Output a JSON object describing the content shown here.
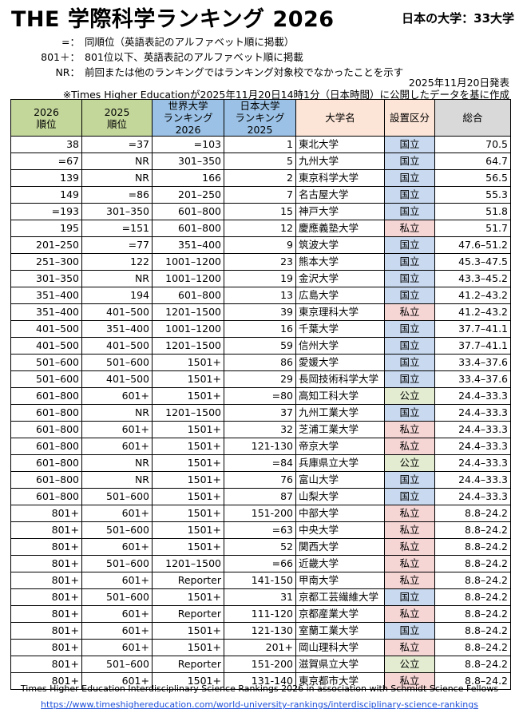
{
  "title": "THE 学際科学ランキング 2026",
  "subtitle": "日本の大学：33大学",
  "legend": [
    {
      "key": "=：",
      "text": "同順位（英語表記のアルファベット順に掲載）"
    },
    {
      "key": "801＋：",
      "text": "801位以下、英語表記のアルファベット順に掲載"
    },
    {
      "key": "NR：",
      "text": "前回または他のランキングではランキング対象校でなかったことを示す"
    }
  ],
  "date_line": "2025年11月20日発表",
  "source_line": "※Times Higher Educationが2025年11月20日14時1分（日本時間）に公開したデータを基に作成",
  "headers": [
    "2026\n順位",
    "2025\n順位",
    "世界大学\nランキング2026",
    "日本大学\nランキング2025",
    "大学名",
    "設置区分",
    "総合"
  ],
  "colors": {
    "national": "#c9daf0",
    "private": "#f6d5d5",
    "public": "#e3ecd0"
  },
  "rows": [
    [
      "38",
      "=37",
      "=103",
      "1",
      "東北大学",
      "国立",
      "70.5"
    ],
    [
      "=67",
      "NR",
      "301–350",
      "5",
      "九州大学",
      "国立",
      "64.7"
    ],
    [
      "139",
      "NR",
      "166",
      "2",
      "東京科学大学",
      "国立",
      "56.5"
    ],
    [
      "149",
      "=86",
      "201–250",
      "7",
      "名古屋大学",
      "国立",
      "55.3"
    ],
    [
      "=193",
      "301–350",
      "601–800",
      "15",
      "神戸大学",
      "国立",
      "51.8"
    ],
    [
      "195",
      "=151",
      "601–800",
      "12",
      "慶應義塾大学",
      "私立",
      "51.7"
    ],
    [
      "201–250",
      "=77",
      "351–400",
      "9",
      "筑波大学",
      "国立",
      "47.6–51.2"
    ],
    [
      "251–300",
      "122",
      "1001–1200",
      "23",
      "熊本大学",
      "国立",
      "45.3–47.5"
    ],
    [
      "301–350",
      "NR",
      "1001–1200",
      "19",
      "金沢大学",
      "国立",
      "43.3–45.2"
    ],
    [
      "351–400",
      "194",
      "601–800",
      "13",
      "広島大学",
      "国立",
      "41.2–43.2"
    ],
    [
      "351–400",
      "401–500",
      "1201–1500",
      "39",
      "東京理科大学",
      "私立",
      "41.2–43.2"
    ],
    [
      "401–500",
      "351–400",
      "1001–1200",
      "16",
      "千葉大学",
      "国立",
      "37.7–41.1"
    ],
    [
      "401–500",
      "401–500",
      "1201–1500",
      "59",
      "信州大学",
      "国立",
      "37.7–41.1"
    ],
    [
      "501–600",
      "501–600",
      "1501+",
      "86",
      "愛媛大学",
      "国立",
      "33.4–37.6"
    ],
    [
      "501–600",
      "401–500",
      "1501+",
      "29",
      "長岡技術科学大学",
      "国立",
      "33.4–37.6"
    ],
    [
      "601–800",
      "601+",
      "1501+",
      "=80",
      "高知工科大学",
      "公立",
      "24.4–33.3"
    ],
    [
      "601–800",
      "NR",
      "1201–1500",
      "37",
      "九州工業大学",
      "国立",
      "24.4–33.3"
    ],
    [
      "601–800",
      "601+",
      "1501+",
      "32",
      "芝浦工業大学",
      "私立",
      "24.4–33.3"
    ],
    [
      "601–800",
      "601+",
      "1501+",
      "121-130",
      "帝京大学",
      "私立",
      "24.4–33.3"
    ],
    [
      "601–800",
      "NR",
      "1501+",
      "=84",
      "兵庫県立大学",
      "公立",
      "24.4–33.3"
    ],
    [
      "601–800",
      "NR",
      "1501+",
      "76",
      "富山大学",
      "国立",
      "24.4–33.3"
    ],
    [
      "601–800",
      "501–600",
      "1501+",
      "87",
      "山梨大学",
      "国立",
      "24.4–33.3"
    ],
    [
      "801+",
      "601+",
      "1501+",
      "151-200",
      "中部大学",
      "私立",
      "8.8–24.2"
    ],
    [
      "801+",
      "501–600",
      "1501+",
      "=63",
      "中央大学",
      "私立",
      "8.8–24.2"
    ],
    [
      "801+",
      "601+",
      "1501+",
      "52",
      "関西大学",
      "私立",
      "8.8–24.2"
    ],
    [
      "801+",
      "501–600",
      "1201–1500",
      "=66",
      "近畿大学",
      "私立",
      "8.8–24.2"
    ],
    [
      "801+",
      "601+",
      "Reporter",
      "141-150",
      "甲南大学",
      "私立",
      "8.8–24.2"
    ],
    [
      "801+",
      "501–600",
      "1501+",
      "31",
      "京都工芸繊維大学",
      "国立",
      "8.8–24.2"
    ],
    [
      "801+",
      "601+",
      "Reporter",
      "111-120",
      "京都産業大学",
      "私立",
      "8.8–24.2"
    ],
    [
      "801+",
      "601+",
      "1501+",
      "121-130",
      "室蘭工業大学",
      "国立",
      "8.8–24.2"
    ],
    [
      "801+",
      "601+",
      "1501+",
      "201+",
      "岡山理科大学",
      "私立",
      "8.8–24.2"
    ],
    [
      "801+",
      "501–600",
      "Reporter",
      "151-200",
      "滋賀県立大学",
      "公立",
      "8.8–24.2"
    ],
    [
      "801+",
      "601+",
      "1501+",
      "131-140",
      "東京都市大学",
      "私立",
      "8.8–24.2"
    ]
  ],
  "footer_text": "Times Higher Education Interdisciplinary Science Rankings 2026 in association with Schmidt Science Fellows",
  "footer_link": "https://www.timeshighereducation.com/world-university-rankings/interdisciplinary-science-rankings"
}
